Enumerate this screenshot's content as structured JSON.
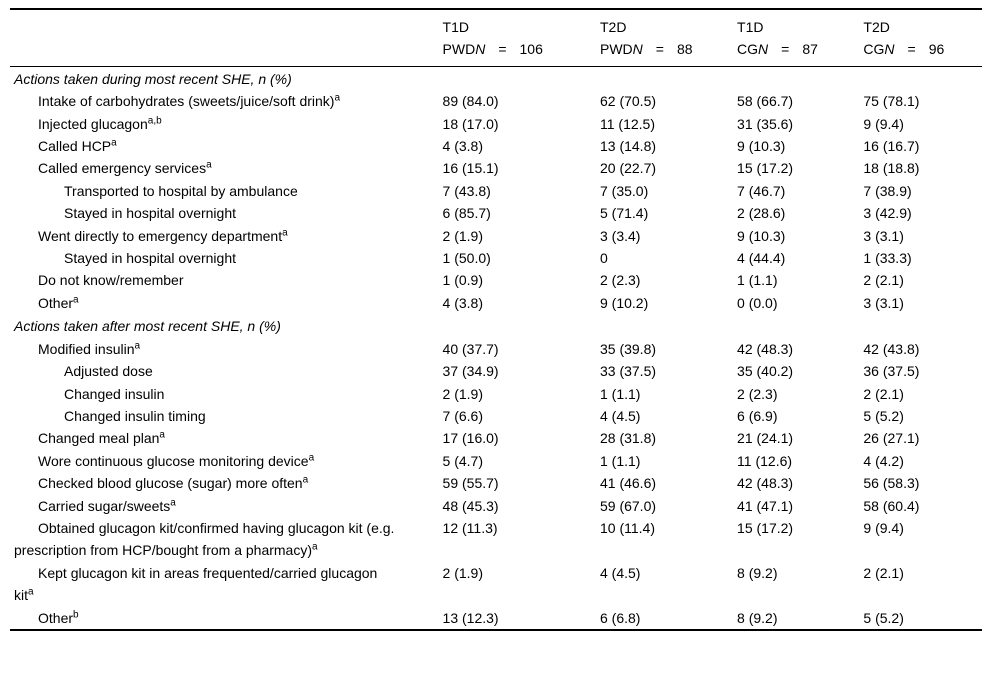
{
  "table": {
    "columns": [
      {
        "line1": "T1D",
        "group": "PWD",
        "n_var": "N",
        "eq": "=",
        "n": "106"
      },
      {
        "line1": "T2D",
        "group": "PWD",
        "n_var": "N",
        "eq": "=",
        "n": "88"
      },
      {
        "line1": "T1D",
        "group": "CG",
        "n_var": "N",
        "eq": "=",
        "n": "87"
      },
      {
        "line1": "T2D",
        "group": "CG",
        "n_var": "N",
        "eq": "=",
        "n": "96"
      }
    ],
    "sections": [
      {
        "title": "Actions taken during most recent SHE, n (%)",
        "rows": [
          {
            "indent": 1,
            "label": "Intake of carbohydrates (sweets/juice/soft drink)",
            "sup": "a",
            "values": [
              "89 (84.0)",
              "62 (70.5)",
              "58 (66.7)",
              "75 (78.1)"
            ]
          },
          {
            "indent": 1,
            "label": "Injected glucagon",
            "sup": "a,b",
            "values": [
              "18 (17.0)",
              "11 (12.5)",
              "31 (35.6)",
              "9 (9.4)"
            ]
          },
          {
            "indent": 1,
            "label": "Called HCP",
            "sup": "a",
            "values": [
              "4 (3.8)",
              "13 (14.8)",
              "9 (10.3)",
              "16 (16.7)"
            ]
          },
          {
            "indent": 1,
            "label": "Called emergency services",
            "sup": "a",
            "values": [
              "16 (15.1)",
              "20 (22.7)",
              "15 (17.2)",
              "18 (18.8)"
            ]
          },
          {
            "indent": 2,
            "label": "Transported to hospital by ambulance",
            "sup": "",
            "values": [
              "7 (43.8)",
              "7 (35.0)",
              "7 (46.7)",
              "7 (38.9)"
            ]
          },
          {
            "indent": 2,
            "label": "Stayed in hospital overnight",
            "sup": "",
            "values": [
              "6 (85.7)",
              "5 (71.4)",
              "2 (28.6)",
              "3 (42.9)"
            ]
          },
          {
            "indent": 1,
            "label": "Went directly to emergency department",
            "sup": "a",
            "values": [
              "2 (1.9)",
              "3 (3.4)",
              "9 (10.3)",
              "3 (3.1)"
            ]
          },
          {
            "indent": 2,
            "label": "Stayed in hospital overnight",
            "sup": "",
            "values": [
              "1 (50.0)",
              "0",
              "4 (44.4)",
              "1 (33.3)"
            ]
          },
          {
            "indent": 1,
            "label": "Do not know/remember",
            "sup": "",
            "values": [
              "1 (0.9)",
              "2 (2.3)",
              "1 (1.1)",
              "2 (2.1)"
            ]
          },
          {
            "indent": 1,
            "label": "Other",
            "sup": "a",
            "values": [
              "4 (3.8)",
              "9 (10.2)",
              "0 (0.0)",
              "3 (3.1)"
            ]
          }
        ]
      },
      {
        "title": "Actions taken after most recent SHE, n (%)",
        "rows": [
          {
            "indent": 1,
            "label": "Modified insulin",
            "sup": "a",
            "values": [
              "40 (37.7)",
              "35 (39.8)",
              "42 (48.3)",
              "42 (43.8)"
            ]
          },
          {
            "indent": 2,
            "label": "Adjusted dose",
            "sup": "",
            "values": [
              "37 (34.9)",
              "33 (37.5)",
              "35 (40.2)",
              "36 (37.5)"
            ]
          },
          {
            "indent": 2,
            "label": "Changed insulin",
            "sup": "",
            "values": [
              "2 (1.9)",
              "1 (1.1)",
              "2 (2.3)",
              "2 (2.1)"
            ]
          },
          {
            "indent": 2,
            "label": "Changed insulin timing",
            "sup": "",
            "values": [
              "7 (6.6)",
              "4 (4.5)",
              "6 (6.9)",
              "5 (5.2)"
            ]
          },
          {
            "indent": 1,
            "label": "Changed meal plan",
            "sup": "a",
            "values": [
              "17 (16.0)",
              "28 (31.8)",
              "21 (24.1)",
              "26 (27.1)"
            ]
          },
          {
            "indent": 1,
            "label": "Wore continuous glucose monitoring device",
            "sup": "a",
            "values": [
              "5 (4.7)",
              "1 (1.1)",
              "11 (12.6)",
              "4 (4.2)"
            ]
          },
          {
            "indent": 1,
            "label": "Checked blood glucose (sugar) more often",
            "sup": "a",
            "values": [
              "59 (55.7)",
              "41 (46.6)",
              "42 (48.3)",
              "56 (58.3)"
            ]
          },
          {
            "indent": 1,
            "label": "Carried sugar/sweets",
            "sup": "a",
            "values": [
              "48 (45.3)",
              "59 (67.0)",
              "41 (47.1)",
              "58 (60.4)"
            ]
          },
          {
            "indent": 1,
            "label": "Obtained glucagon kit/confirmed having glucagon kit (e.g. prescription from HCP/bought from a pharmacy)",
            "sup": "a",
            "values": [
              "12 (11.3)",
              "10 (11.4)",
              "15 (17.2)",
              "9 (9.4)"
            ]
          },
          {
            "indent": 1,
            "label": "Kept glucagon kit in areas frequented/carried glucagon kit",
            "sup": "a",
            "values": [
              "2 (1.9)",
              "4 (4.5)",
              "8 (9.2)",
              "2 (2.1)"
            ]
          },
          {
            "indent": 1,
            "label": "Other",
            "sup": "b",
            "values": [
              "13 (12.3)",
              "6 (6.8)",
              "8 (9.2)",
              "5 (5.2)"
            ]
          }
        ]
      }
    ]
  }
}
